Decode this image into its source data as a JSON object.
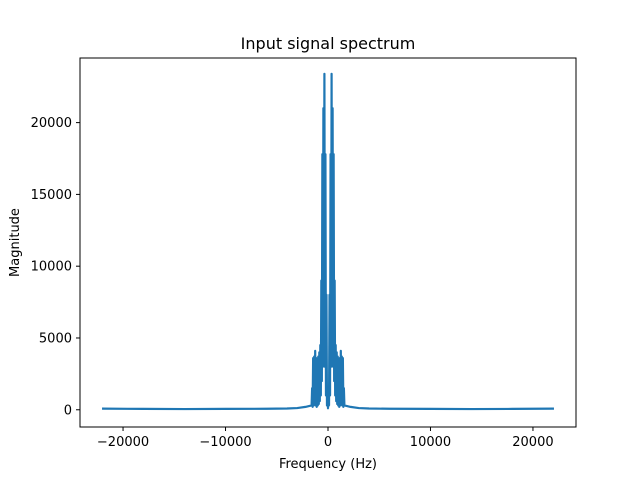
{
  "chart_data": {
    "type": "line",
    "title": "Input signal spectrum",
    "xlabel": "Frequency (Hz)",
    "ylabel": "Magnitude",
    "xlim": [
      -24200,
      24200
    ],
    "ylim": [
      -1200,
      24500
    ],
    "xticks": [
      {
        "value": -20000,
        "label": "−20000"
      },
      {
        "value": -10000,
        "label": "−10000"
      },
      {
        "value": 0,
        "label": "0"
      },
      {
        "value": 10000,
        "label": "10000"
      },
      {
        "value": 20000,
        "label": "20000"
      }
    ],
    "yticks": [
      {
        "value": 0,
        "label": "0"
      },
      {
        "value": 5000,
        "label": "5000"
      },
      {
        "value": 10000,
        "label": "10000"
      },
      {
        "value": 15000,
        "label": "15000"
      },
      {
        "value": 20000,
        "label": "20000"
      }
    ],
    "grid": false,
    "series": [
      {
        "color": "#1f77b4",
        "x": [
          -22050,
          -18000,
          -14000,
          -10000,
          -6000,
          -4000,
          -3000,
          -2200,
          -1600,
          -1550,
          -1500,
          -1450,
          -1400,
          -1350,
          -1300,
          -1250,
          -1200,
          -1150,
          -1100,
          -1050,
          -1000,
          -950,
          -900,
          -850,
          -800,
          -750,
          -700,
          -650,
          -600,
          -550,
          -500,
          -450,
          -400,
          -350,
          -300,
          -250,
          -200,
          -150,
          -100,
          -50,
          0,
          50,
          100,
          150,
          200,
          250,
          300,
          350,
          400,
          450,
          500,
          550,
          600,
          650,
          700,
          750,
          800,
          850,
          900,
          950,
          1000,
          1050,
          1100,
          1150,
          1200,
          1250,
          1300,
          1350,
          1400,
          1450,
          1500,
          1550,
          1600,
          2200,
          3000,
          4000,
          6000,
          10000,
          14000,
          18000,
          22050
        ],
        "y": [
          80,
          60,
          50,
          60,
          70,
          90,
          120,
          200,
          300,
          1500,
          200,
          3600,
          300,
          3700,
          400,
          4100,
          300,
          3600,
          200,
          3500,
          300,
          3700,
          400,
          4000,
          600,
          4500,
          1000,
          9000,
          2000,
          17800,
          3000,
          21000,
          4000,
          23400,
          3000,
          17800,
          1000,
          8000,
          300,
          1500,
          100,
          1500,
          300,
          8000,
          1000,
          17800,
          3000,
          23400,
          4000,
          21000,
          3000,
          17800,
          2000,
          9000,
          1000,
          4500,
          600,
          4000,
          400,
          3700,
          300,
          3500,
          200,
          3600,
          300,
          4100,
          400,
          3700,
          300,
          3600,
          200,
          1500,
          300,
          200,
          120,
          90,
          70,
          60,
          50,
          60,
          80
        ]
      }
    ]
  }
}
